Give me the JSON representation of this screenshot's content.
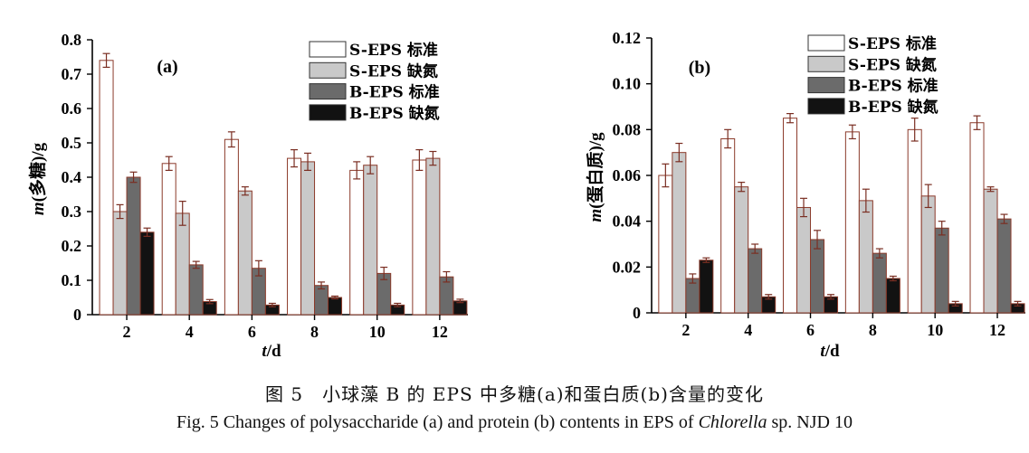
{
  "colors": {
    "s_eps_standard": "#ffffff",
    "s_eps_n_deficient": "#c9c9c9",
    "b_eps_standard": "#6b6b6b",
    "b_eps_n_deficient": "#121212",
    "bar_stroke": "#8b3a2a",
    "error_bar": "#7a2e22"
  },
  "caption": {
    "cn": "图 5　小球藻 B 的 EPS 中多糖(a)和蛋白质(b)含量的变化",
    "en_prefix": "Fig. 5  Changes of polysaccharide (a) and protein (b) contents in EPS of ",
    "en_italic": "Chlorella",
    "en_suffix": " sp. NJD 10"
  },
  "chart_data": [
    {
      "type": "bar",
      "panel_label": "(a)",
      "xlabel_italic": "t",
      "xlabel_unit": "/d",
      "ylabel_italic": "m",
      "ylabel_rest": "(多糖)/g",
      "categories": [
        "2",
        "4",
        "6",
        "8",
        "10",
        "12"
      ],
      "ylim": [
        0,
        0.8
      ],
      "yticks": [
        "0",
        "0.1",
        "0.2",
        "0.3",
        "0.4",
        "0.5",
        "0.6",
        "0.7",
        "0.8"
      ],
      "legend_position": "top-right",
      "series": [
        {
          "name": "S-EPS 标准",
          "color_key": "s_eps_standard",
          "values": [
            0.74,
            0.44,
            0.51,
            0.455,
            0.42,
            0.45
          ],
          "errors": [
            0.02,
            0.02,
            0.022,
            0.025,
            0.025,
            0.03
          ]
        },
        {
          "name": "S-EPS 缺氮",
          "color_key": "s_eps_n_deficient",
          "values": [
            0.3,
            0.295,
            0.36,
            0.445,
            0.435,
            0.455
          ],
          "errors": [
            0.02,
            0.035,
            0.012,
            0.025,
            0.025,
            0.02
          ]
        },
        {
          "name": "B-EPS 标准",
          "color_key": "b_eps_standard",
          "values": [
            0.4,
            0.145,
            0.135,
            0.085,
            0.12,
            0.11
          ],
          "errors": [
            0.015,
            0.01,
            0.022,
            0.01,
            0.018,
            0.015
          ]
        },
        {
          "name": "B-EPS 缺氮",
          "color_key": "b_eps_n_deficient",
          "values": [
            0.24,
            0.038,
            0.028,
            0.05,
            0.028,
            0.04
          ],
          "errors": [
            0.012,
            0.006,
            0.005,
            0.004,
            0.005,
            0.005
          ]
        }
      ]
    },
    {
      "type": "bar",
      "panel_label": "(b)",
      "xlabel_italic": "t",
      "xlabel_unit": "/d",
      "ylabel_italic": "m",
      "ylabel_rest": "(蛋白质)/g",
      "categories": [
        "2",
        "4",
        "6",
        "8",
        "10",
        "12"
      ],
      "ylim": [
        0,
        0.12
      ],
      "yticks": [
        "0",
        "0.02",
        "0.04",
        "0.06",
        "0.08",
        "0.10",
        "0.12"
      ],
      "legend_position": "top-right",
      "series": [
        {
          "name": "S-EPS 标准",
          "color_key": "s_eps_standard",
          "values": [
            0.06,
            0.076,
            0.085,
            0.079,
            0.08,
            0.083
          ],
          "errors": [
            0.005,
            0.004,
            0.002,
            0.003,
            0.005,
            0.003
          ]
        },
        {
          "name": "S-EPS 缺氮",
          "color_key": "s_eps_n_deficient",
          "values": [
            0.07,
            0.055,
            0.046,
            0.049,
            0.051,
            0.054
          ],
          "errors": [
            0.004,
            0.002,
            0.004,
            0.005,
            0.005,
            0.001
          ]
        },
        {
          "name": "B-EPS 标准",
          "color_key": "b_eps_standard",
          "values": [
            0.015,
            0.028,
            0.032,
            0.026,
            0.037,
            0.041
          ],
          "errors": [
            0.002,
            0.002,
            0.004,
            0.002,
            0.003,
            0.002
          ]
        },
        {
          "name": "B-EPS 缺氮",
          "color_key": "b_eps_n_deficient",
          "values": [
            0.023,
            0.007,
            0.007,
            0.015,
            0.004,
            0.004
          ],
          "errors": [
            0.001,
            0.001,
            0.001,
            0.001,
            0.001,
            0.001
          ]
        }
      ]
    }
  ]
}
